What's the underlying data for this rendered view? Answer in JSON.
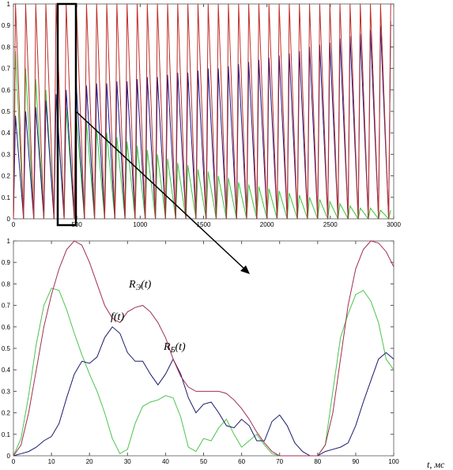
{
  "chart_data": [
    {
      "type": "line",
      "xlim": [
        0,
        3000
      ],
      "ylim": [
        0,
        1
      ],
      "xticks": [
        0,
        500,
        1000,
        1500,
        2000,
        2500,
        3000
      ],
      "yticks": [
        0,
        0.1,
        0.2,
        0.3,
        0.4,
        0.5,
        0.6,
        0.7,
        0.8,
        0.9,
        1
      ],
      "x": [
        0,
        16,
        80,
        96,
        160,
        176,
        240,
        256,
        320,
        336,
        400,
        416,
        480,
        496,
        560,
        576,
        640,
        656,
        720,
        736,
        800,
        816,
        880,
        896,
        960,
        976,
        1040,
        1056,
        1120,
        1136,
        1200,
        1216,
        1280,
        1296,
        1360,
        1376,
        1440,
        1456,
        1520,
        1536,
        1600,
        1616,
        1680,
        1696,
        1760,
        1776,
        1840,
        1856,
        1920,
        1936,
        2000,
        2016,
        2080,
        2096,
        2160,
        2176,
        2240,
        2256,
        2320,
        2336,
        2400,
        2416,
        2480,
        2496,
        2560,
        2576,
        2640,
        2656,
        2720,
        2736,
        2800,
        2816,
        2880,
        2896,
        2960,
        2976
      ],
      "series": [
        {
          "color": "#c0302a",
          "values": [
            0,
            1,
            0,
            1,
            0,
            1,
            0,
            1,
            0,
            1,
            0,
            1,
            0,
            1,
            0,
            1,
            0,
            1,
            0,
            1,
            0,
            1,
            0,
            1,
            0,
            1,
            0,
            1,
            0,
            1,
            0,
            1,
            0,
            1,
            0,
            1,
            0,
            1,
            0,
            1,
            0,
            1,
            0,
            1,
            0,
            1,
            0,
            1,
            0,
            1,
            0,
            1,
            0,
            1,
            0,
            1,
            0,
            1,
            0,
            1,
            0,
            1,
            0,
            1,
            0,
            1,
            0,
            1,
            0,
            1,
            0,
            1,
            0,
            1,
            0,
            1
          ]
        },
        {
          "color": "#1a1a8c",
          "values": [
            0,
            0.48,
            0,
            0.5,
            0,
            0.52,
            0,
            0.55,
            0,
            0.58,
            0,
            0.6,
            0,
            0.62,
            0,
            0.62,
            0,
            0.63,
            0,
            0.63,
            0,
            0.64,
            0,
            0.64,
            0,
            0.65,
            0,
            0.66,
            0,
            0.66,
            0,
            0.67,
            0,
            0.68,
            0,
            0.68,
            0,
            0.69,
            0,
            0.7,
            0,
            0.7,
            0,
            0.71,
            0,
            0.72,
            0,
            0.73,
            0,
            0.74,
            0,
            0.75,
            0,
            0.76,
            0,
            0.77,
            0,
            0.78,
            0,
            0.8,
            0,
            0.81,
            0,
            0.82,
            0,
            0.84,
            0,
            0.85,
            0,
            0.86,
            0,
            0.88,
            0,
            0.9,
            0,
            0.92
          ]
        },
        {
          "color": "#3cc43c",
          "values": [
            0,
            0.78,
            0,
            0.7,
            0,
            0.65,
            0,
            0.6,
            0,
            0.56,
            0,
            0.52,
            0,
            0.48,
            0,
            0.45,
            0,
            0.42,
            0,
            0.4,
            0,
            0.38,
            0,
            0.36,
            0,
            0.34,
            0,
            0.32,
            0,
            0.3,
            0,
            0.28,
            0,
            0.26,
            0,
            0.25,
            0,
            0.23,
            0,
            0.22,
            0,
            0.2,
            0,
            0.19,
            0,
            0.17,
            0,
            0.16,
            0,
            0.15,
            0,
            0.14,
            0,
            0.13,
            0,
            0.12,
            0,
            0.11,
            0,
            0.1,
            0,
            0.09,
            0,
            0.08,
            0,
            0.07,
            0,
            0.06,
            0,
            0.05,
            0,
            0.05,
            0,
            0.04,
            0,
            0.04
          ]
        }
      ]
    },
    {
      "type": "line",
      "xlim": [
        0,
        100
      ],
      "ylim": [
        0,
        1
      ],
      "xticks": [
        0,
        10,
        20,
        30,
        40,
        50,
        60,
        70,
        80,
        90,
        100
      ],
      "yticks": [
        0,
        0.1,
        0.2,
        0.3,
        0.4,
        0.5,
        0.6,
        0.7,
        0.8,
        0.9,
        1
      ],
      "x": [
        0,
        2,
        4,
        6,
        8,
        10,
        12,
        14,
        16,
        18,
        20,
        22,
        24,
        26,
        28,
        30,
        32,
        34,
        36,
        38,
        40,
        42,
        44,
        46,
        48,
        50,
        52,
        54,
        56,
        58,
        60,
        62,
        64,
        66,
        68,
        70,
        72,
        74,
        76,
        78,
        80,
        82,
        84,
        86,
        88,
        90,
        92,
        94,
        96,
        98,
        100
      ],
      "series": [
        {
          "color": "#a03050",
          "values": [
            0,
            0.05,
            0.2,
            0.4,
            0.6,
            0.75,
            0.87,
            0.96,
            1,
            0.98,
            0.9,
            0.8,
            0.7,
            0.64,
            0.62,
            0.67,
            0.69,
            0.7,
            0.67,
            0.62,
            0.55,
            0.45,
            0.37,
            0.32,
            0.3,
            0.3,
            0.3,
            0.3,
            0.29,
            0.26,
            0.22,
            0.17,
            0.11,
            0.06,
            0.02,
            0,
            0,
            0,
            0,
            0,
            0,
            0.05,
            0.2,
            0.45,
            0.7,
            0.87,
            0.96,
            1,
            0.99,
            0.95,
            0.88
          ]
        },
        {
          "color": "#1a1a6c",
          "values": [
            0,
            0.01,
            0.02,
            0.04,
            0.07,
            0.09,
            0.15,
            0.27,
            0.38,
            0.44,
            0.43,
            0.46,
            0.55,
            0.6,
            0.57,
            0.48,
            0.44,
            0.44,
            0.38,
            0.33,
            0.38,
            0.45,
            0.38,
            0.27,
            0.2,
            0.24,
            0.25,
            0.2,
            0.14,
            0.13,
            0.17,
            0.14,
            0.07,
            0.07,
            0.16,
            0.19,
            0.14,
            0.06,
            0.02,
            0,
            0,
            0.02,
            0.03,
            0.04,
            0.06,
            0.14,
            0.25,
            0.35,
            0.45,
            0.48,
            0.45
          ]
        },
        {
          "color": "#4cc44c",
          "values": [
            0,
            0.08,
            0.28,
            0.52,
            0.7,
            0.78,
            0.77,
            0.68,
            0.57,
            0.47,
            0.38,
            0.3,
            0.2,
            0.08,
            0.01,
            0.03,
            0.15,
            0.23,
            0.25,
            0.26,
            0.28,
            0.27,
            0.18,
            0.04,
            0.02,
            0.08,
            0.07,
            0.13,
            0.17,
            0.1,
            0.04,
            0.07,
            0.1,
            0.05,
            0.01,
            0,
            0,
            0,
            0,
            0,
            0,
            0.05,
            0.3,
            0.55,
            0.66,
            0.75,
            0.77,
            0.72,
            0.62,
            0.45,
            0.4
          ]
        }
      ],
      "annotations": [
        {
          "main": "R",
          "sub": "Э",
          "tail": "(t)"
        },
        {
          "main": "f",
          "tail": "(t)"
        },
        {
          "main": "R",
          "sub": "Б",
          "tail": "(t)"
        }
      ],
      "xlabel": "t, мс"
    }
  ]
}
